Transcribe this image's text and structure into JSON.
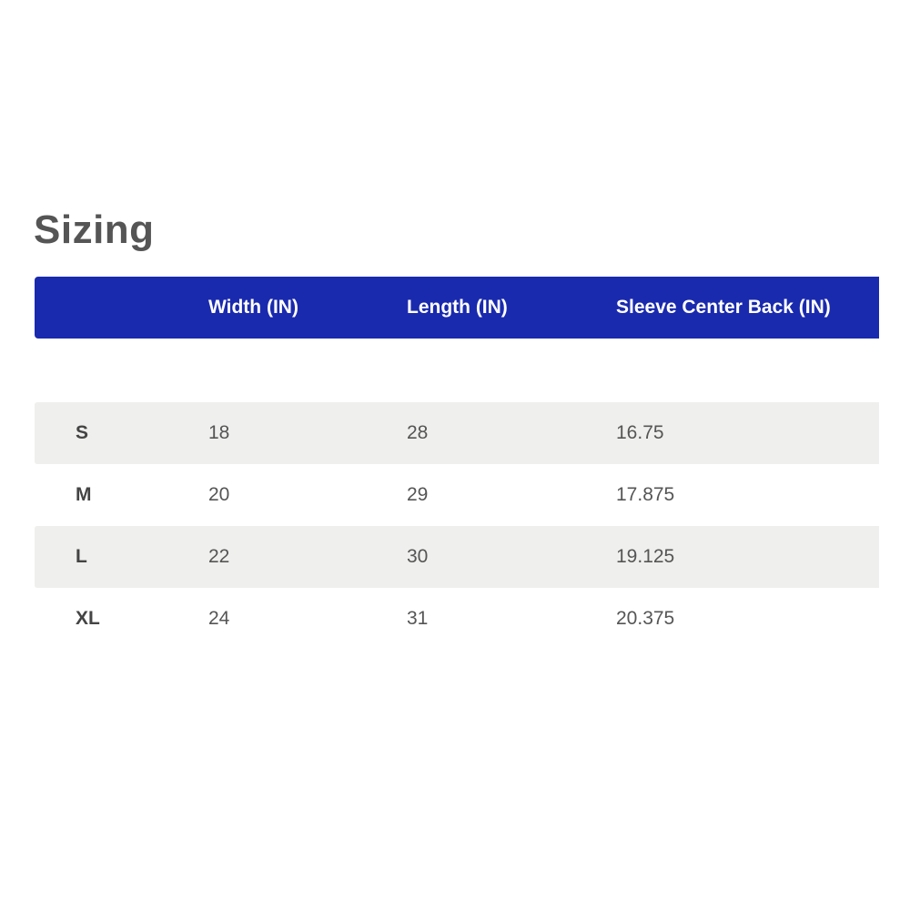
{
  "title": "Sizing",
  "colors": {
    "header_bg": "#1a2aae",
    "stripe_bg": "#efefed"
  },
  "table": {
    "headers": [
      "",
      "Width (IN)",
      "Length (IN)",
      "Sleeve Center Back (IN)"
    ],
    "rows": [
      [
        "S",
        "18",
        "28",
        "16.75"
      ],
      [
        "M",
        "20",
        "29",
        "17.875"
      ],
      [
        "L",
        "22",
        "30",
        "19.125"
      ],
      [
        "XL",
        "24",
        "31",
        "20.375"
      ]
    ]
  }
}
